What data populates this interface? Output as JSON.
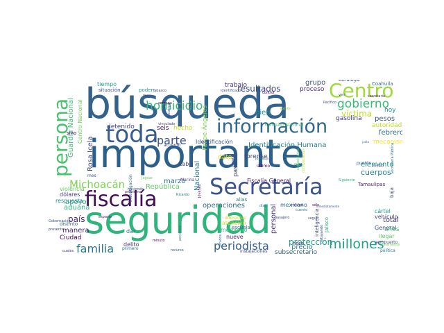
{
  "wordcloud": {
    "background": "#ffffff",
    "words": [
      {
        "text": "importante",
        "color": "#2c5f8a"
      },
      {
        "text": "búsqueda",
        "color": "#33628d"
      },
      {
        "text": "seguridad",
        "color": "#2fb47c"
      },
      {
        "text": "Secretaría",
        "color": "#3b528b"
      },
      {
        "text": "fiscalía",
        "color": "#440d57"
      },
      {
        "text": "información",
        "color": "#31688e"
      },
      {
        "text": "toda",
        "color": "#365c8d"
      },
      {
        "text": "Centro",
        "color": "#a0da39"
      },
      {
        "text": "persona",
        "color": "#4ac16d"
      },
      {
        "text": "gobierno",
        "color": "#3aba76"
      },
      {
        "text": "millones",
        "color": "#1fa187"
      },
      {
        "text": "periodista",
        "color": "#34618d"
      },
      {
        "text": "homicidio",
        "color": "#35b779"
      },
      {
        "text": "familia",
        "color": "#2a788e"
      },
      {
        "text": "parte",
        "color": "#3b528b"
      },
      {
        "text": "Michoacán",
        "color": "#7ad151"
      },
      {
        "text": "víctima",
        "color": "#bddf26"
      },
      {
        "text": "Identificación Humana",
        "color": "#26828e"
      },
      {
        "text": "resultados",
        "color": "#3e4a89"
      },
      {
        "text": "Guardia Nacional",
        "color": "#3aba76"
      },
      {
        "text": "Centro Nacional",
        "color": "#6ece58"
      },
      {
        "text": "República",
        "color": "#5ec962"
      },
      {
        "text": "protección",
        "color": "#1f9e89"
      },
      {
        "text": "país",
        "color": "#482878"
      },
      {
        "text": "Rosa Icela",
        "color": "#3e4989"
      },
      {
        "text": "Felipe Ángeles",
        "color": "#7ad151"
      },
      {
        "text": "cuerpos",
        "color": "#24868e"
      },
      {
        "text": "aduana",
        "color": "#2fb47c"
      },
      {
        "text": "apoyo",
        "color": "#2fb47c"
      },
      {
        "text": "marzo",
        "color": "#2d708e"
      },
      {
        "text": "elemento",
        "color": "#1f988b"
      },
      {
        "text": "Ciudad",
        "color": "#440154"
      },
      {
        "text": "manera",
        "color": "#482475"
      },
      {
        "text": "subsecretario",
        "color": "#355f8d"
      },
      {
        "text": "precio",
        "color": "#26828e"
      },
      {
        "text": "operaciones",
        "color": "#31688e"
      },
      {
        "text": "Nacional",
        "color": "#2a788e"
      },
      {
        "text": "personal",
        "color": "#46327e"
      },
      {
        "text": "pasado",
        "color": "#3e4a89"
      },
      {
        "text": "trabajo",
        "color": "#46327e"
      },
      {
        "text": "grupo",
        "color": "#3b528b"
      },
      {
        "text": "proceso",
        "color": "#472c7a"
      },
      {
        "text": "bien",
        "color": "#20928c"
      },
      {
        "text": "Fiscalía General",
        "color": "#481f70"
      },
      {
        "text": "forense",
        "color": "#404688"
      },
      {
        "text": "dato",
        "color": "#dde318"
      },
      {
        "text": "total",
        "color": "#443a83"
      },
      {
        "text": "febrero",
        "color": "#2c728e"
      },
      {
        "text": "pesos",
        "color": "#39568c"
      },
      {
        "text": "años",
        "color": "#5ec962"
      },
      {
        "text": "hoy",
        "color": "#21918c"
      },
      {
        "text": "gasolina",
        "color": "#443983"
      },
      {
        "text": "autoridades",
        "color": "#bddf26"
      },
      {
        "text": "mecanismo",
        "color": "#fde725"
      },
      {
        "text": "detenido",
        "color": "#3e4a89"
      },
      {
        "text": "seis",
        "color": "#460a5d"
      },
      {
        "text": "hecho",
        "color": "#cae11f"
      },
      {
        "text": "cabo",
        "color": "#3f4889"
      },
      {
        "text": "Identificación",
        "color": "#3b528b"
      },
      {
        "text": "violencia",
        "color": "#65cb5e"
      },
      {
        "text": "dólares",
        "color": "#46327e"
      },
      {
        "text": "respuesta",
        "color": "#26828e"
      },
      {
        "text": "mexicano",
        "color": "#2d708e"
      },
      {
        "text": "momento",
        "color": "#35b779"
      },
      {
        "text": "nueve",
        "color": "#481f70"
      },
      {
        "text": "atención",
        "color": "#c8e020"
      },
      {
        "text": "escuela",
        "color": "#2e6f8e"
      },
      {
        "text": "vehículo",
        "color": "#433e85"
      },
      {
        "text": "cártel",
        "color": "#1fa188"
      },
      {
        "text": "General",
        "color": "#3b528b"
      },
      {
        "text": "llegar",
        "color": "#5ec962"
      },
      {
        "text": "hora",
        "color": "#46327e"
      },
      {
        "text": "Jalisco",
        "color": "#27ad81"
      },
      {
        "text": "inteligencia",
        "color": "#3e4a89"
      },
      {
        "text": "delito",
        "color": "#46327e"
      },
      {
        "text": "dar",
        "color": "#2a788e"
      },
      {
        "text": "distinto",
        "color": "#31688e"
      },
      {
        "text": "tiempo",
        "color": "#1f9e89"
      },
      {
        "text": "situación",
        "color": "#3b528b"
      },
      {
        "text": "poder",
        "color": "#1e9b8a"
      },
      {
        "text": "estrategia",
        "color": "#3e4989"
      },
      {
        "text": "Coahuila",
        "color": "#31688e"
      },
      {
        "text": "sino",
        "color": "#440154"
      },
      {
        "text": "Marina",
        "color": "#433e85"
      },
      {
        "text": "alias",
        "color": "#2c728e"
      },
      {
        "text": "Tamaulipas",
        "color": "#481f70"
      },
      {
        "text": "baja",
        "color": "#3e4a89"
      },
      {
        "text": "Comisión Nacional",
        "color": "#4ac16d"
      },
      {
        "text": "Siguiente",
        "color": "#29af7f"
      },
      {
        "text": "puente",
        "color": "#3b528b"
      },
      {
        "text": "último",
        "color": "#440154"
      },
      {
        "text": "ruta",
        "color": "#1fa187"
      },
      {
        "text": "aeropuerto",
        "color": "#3e4a89"
      },
      {
        "text": "política",
        "color": "#2a788e"
      },
      {
        "text": "solamente",
        "color": "#7ad151"
      },
      {
        "text": "Gobernación",
        "color": "#3b528b"
      },
      {
        "text": "cuales",
        "color": "#46327e"
      },
      {
        "text": "primero",
        "color": "#2c728e"
      },
      {
        "text": "recurso",
        "color": "#3b528b"
      },
      {
        "text": "minuto",
        "color": "#440154"
      },
      {
        "text": "instalaciones",
        "color": "#3e4a89"
      },
      {
        "text": "Unidos",
        "color": "#31688e"
      },
      {
        "text": "espacio",
        "color": "#482878"
      },
      {
        "text": "seguir",
        "color": "#3b528b"
      },
      {
        "text": "acciones",
        "color": "#2a788e"
      },
      {
        "text": "investigación",
        "color": "#31688e"
      },
      {
        "text": "problema",
        "color": "#481f70"
      },
      {
        "text": "haciendo",
        "color": "#3b528b"
      },
      {
        "text": "acuerdo",
        "color": "#3b528b"
      },
      {
        "text": "semana",
        "color": "#440154"
      },
      {
        "text": "iniciativa",
        "color": "#3e4a89"
      },
      {
        "text": "vinculado",
        "color": "#46327e"
      },
      {
        "text": "identificado",
        "color": "#3b528b"
      },
      {
        "text": "control",
        "color": "#440154"
      },
      {
        "text": "Pacífico",
        "color": "#3b528b"
      },
      {
        "text": "secretaria",
        "color": "#46327e"
      },
      {
        "text": "Secretaría Pública",
        "color": "#2c728e"
      },
      {
        "text": "pueblo",
        "color": "#3e4a89"
      },
      {
        "text": "junto",
        "color": "#2a788e"
      },
      {
        "text": "inmediatamente",
        "color": "#3b528b"
      },
      {
        "text": "sólo",
        "color": "#440154"
      },
      {
        "text": "mismo",
        "color": "#46327e"
      },
      {
        "text": "pasajero",
        "color": "#3e4a89"
      },
      {
        "text": "trabajando",
        "color": "#3b528b"
      },
      {
        "text": "Ricardo",
        "color": "#2a788e"
      },
      {
        "text": "Jóvenes",
        "color": "#440154"
      },
      {
        "text": "vez",
        "color": "#46327e"
      },
      {
        "text": "Plan",
        "color": "#3b528b"
      },
      {
        "text": "Tabasco",
        "color": "#3e4a89"
      },
      {
        "text": "cuento",
        "color": "#2a788e"
      },
      {
        "text": "ven",
        "color": "#3b528b"
      },
      {
        "text": "diferentes",
        "color": "#cae11f"
      },
      {
        "text": "días",
        "color": "#2a788e"
      },
      {
        "text": "Jaguar",
        "color": "#65cb5e"
      },
      {
        "text": "cuenta",
        "color": "#3b528b"
      },
      {
        "text": "jornada",
        "color": "#2c728e"
      },
      {
        "text": "capacidades",
        "color": "#5ec962"
      },
      {
        "text": "comunicación",
        "color": "#bddf26"
      },
      {
        "text": "presente",
        "color": "#3e4a89"
      },
      {
        "text": "mes",
        "color": "#3b528b"
      },
      {
        "text": "existe",
        "color": "#a0da39"
      }
    ]
  }
}
